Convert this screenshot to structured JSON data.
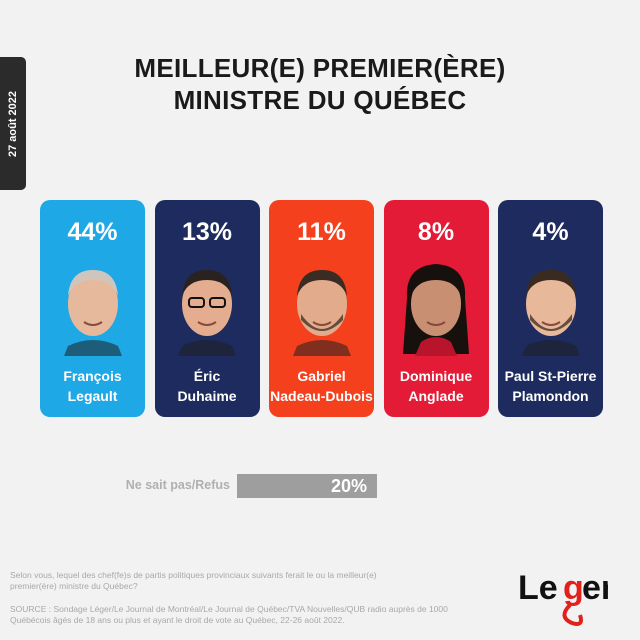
{
  "date": "27 août 2022",
  "title": {
    "line1": "MEILLEUR(E) PREMIER(ÈRE)",
    "line2": "MINISTRE DU QUÉBEC"
  },
  "colors": {
    "caq": "#1ea8e6",
    "plq": "#1d2b5e",
    "qs": "#f5401e",
    "pq": "#e31b37",
    "pcq": "#1d2b5e",
    "undecided": "#9e9e9e",
    "background": "#f2f2f2",
    "logo_red": "#e2211c"
  },
  "chart_data": {
    "type": "bar",
    "title": "MEILLEUR(E) PREMIER(ÈRE) MINISTRE DU QUÉBEC",
    "categories": [
      "François Legault",
      "Éric Duhaime",
      "Gabriel Nadeau-Dubois",
      "Dominique Anglade",
      "Paul St-Pierre Plamondon"
    ],
    "values": [
      44,
      13,
      11,
      8,
      4
    ],
    "labels": [
      "44%",
      "13%",
      "11%",
      "8%",
      "4%"
    ],
    "candidates": [
      {
        "first": "François",
        "last": "Legault",
        "label": "44%",
        "value": 44,
        "color": "#1ea8e6"
      },
      {
        "first": "Éric",
        "last": "Duhaime",
        "label": "13%",
        "value": 13,
        "color": "#1d2b5e"
      },
      {
        "first": "Gabriel",
        "last": "Nadeau-Dubois",
        "label": "11%",
        "value": 11,
        "color": "#f5401e"
      },
      {
        "first": "Dominique",
        "last": "Anglade",
        "label": "8%",
        "value": 8,
        "color": "#e31b37"
      },
      {
        "first": "Paul St-Pierre",
        "last": "Plamondon",
        "label": "4%",
        "value": 4,
        "color": "#1d2b5e"
      }
    ],
    "undecided": {
      "label": "Ne sait pas/Refus",
      "value": 20,
      "display": "20%"
    }
  },
  "footer": {
    "question": "Selon vous, lequel des chef(fe)s de partis politiques provinciaux suivants ferait le ou la meilleur(e) premier(ère) ministre du Québec?",
    "source": "SOURCE : Sondage Léger/Le Journal de Montréal/Le Journal de Québec/TVA Nouvelles/QUB radio auprès de 1000 Québécois âgés de 18 ans ou plus et ayant le droit de vote au Québec, 22-26 août 2022."
  },
  "logo": {
    "text": "Leger"
  }
}
